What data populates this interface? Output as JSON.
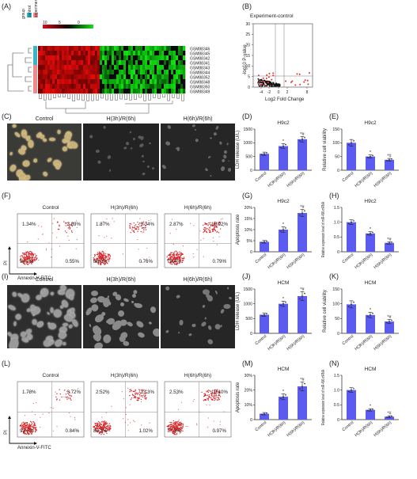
{
  "panels": {
    "A": "(A)",
    "B": "(B)",
    "C": "(C)",
    "D": "(D)",
    "E": "(E)",
    "F": "(F)",
    "G": "(G)",
    "H": "(H)",
    "I": "(I)",
    "J": "(J)",
    "K": "(K)",
    "L": "(L)",
    "M": "(M)",
    "N": "(N)"
  },
  "heatmap": {
    "group_label": "group",
    "legend_groups": [
      "control",
      "experiment"
    ],
    "scale_ticks": [
      "10",
      "5",
      "0"
    ],
    "samples": [
      "GSM88346",
      "GSM88345",
      "GSM88342",
      "GSM88341",
      "GSM88343",
      "GSM88344",
      "GSM88352",
      "GSM88348",
      "GSM88350",
      "GSM88349"
    ],
    "colors": {
      "control": "#35b6c9",
      "experiment": "#f08a8a",
      "high": "#e8101a",
      "low": "#18c018"
    }
  },
  "volcano": {
    "title": "Experiment-control",
    "xlabel": "Log2 Fold Change",
    "ylabel": "-log10 P-value",
    "xticks": [
      "-4",
      "-2",
      "0",
      "2",
      "8"
    ],
    "yticks": [
      "0",
      "5",
      "10",
      "15",
      "20",
      "25",
      "30"
    ]
  },
  "micro_labels": {
    "c1": "Control",
    "c2": "H(3h)/R(6h)",
    "c3": "H(6h)/R(6h)",
    "i1": "Control",
    "i2": "H(3h)/R(6h)",
    "i3": "H(6h)/R(6h)"
  },
  "flow": {
    "F": [
      {
        "title": "Control",
        "ul": "1.34%",
        "ur": "3.89%",
        "ll": "94.2%",
        "lr": "0.55%"
      },
      {
        "title": "H(3h)/R(6h)",
        "ul": "1.87%",
        "ur": "9.34%",
        "ll": "88.0%",
        "lr": "0.76%"
      },
      {
        "title": "H(6h)/R(6h)",
        "ul": "2.87%",
        "ur": "16.92%",
        "ll": "79.4%",
        "lr": "0.79%"
      }
    ],
    "L": [
      {
        "title": "Control",
        "ul": "1.78%",
        "ur": "3.72%",
        "ll": "93.7%",
        "lr": "0.84%"
      },
      {
        "title": "H(3h)/R(6h)",
        "ul": "2.52%",
        "ur": "13.3%",
        "ll": "83.2%",
        "lr": "1.02%"
      },
      {
        "title": "H(6h)/R(6h)",
        "ul": "2.53%",
        "ur": "19.10%",
        "ll": "77.3%",
        "lr": "0.97%"
      }
    ],
    "ylabel": "PI",
    "xlabel": "Annexin-V-FITC"
  },
  "bar_color": "#5b5bf0",
  "chart_data": [
    {
      "id": "D",
      "type": "bar",
      "title": "H9c2",
      "ylabel": "LDH release (U/L)",
      "categories": [
        "Control",
        "H(3h)/R(6h)",
        "H(6h)/R(6h)"
      ],
      "values": [
        600,
        880,
        1130
      ],
      "errors": [
        60,
        90,
        100
      ],
      "ylim": [
        0,
        1500
      ],
      "yticks": [
        0,
        500,
        1000,
        1500
      ],
      "marks": [
        "",
        "*",
        "*#"
      ]
    },
    {
      "id": "E",
      "type": "bar",
      "title": "H9c2",
      "ylabel": "Relative cell viability",
      "categories": [
        "Control",
        "H(3h)/R(6h)",
        "H(6h)/R(6h)"
      ],
      "values": [
        100,
        50,
        38
      ],
      "errors": [
        12,
        6,
        5
      ],
      "ylim": [
        0,
        150
      ],
      "yticks": [
        0,
        50,
        100,
        150
      ],
      "marks": [
        "",
        "*",
        "*#"
      ]
    },
    {
      "id": "G",
      "type": "bar",
      "title": "H9c2",
      "ylabel": "Apoptosis rate",
      "categories": [
        "Control",
        "H(3h)/R(6h)",
        "H(6h)/R(6h)"
      ],
      "values": [
        4.5,
        10,
        17.5
      ],
      "errors": [
        0.6,
        1.2,
        1.6
      ],
      "ylim": [
        0,
        20
      ],
      "yticks": [
        "0",
        "5%",
        "10%",
        "15%",
        "20%"
      ],
      "marks": [
        "",
        "*",
        "*#"
      ]
    },
    {
      "id": "H",
      "type": "bar",
      "title": "H9c2",
      "ylabel": "Relative expression level of miR-496 mRNA",
      "categories": [
        "Control",
        "H(3h)/R(6h)",
        "H(6h)/R(6h)"
      ],
      "values": [
        1.0,
        0.62,
        0.3
      ],
      "errors": [
        0.08,
        0.06,
        0.04
      ],
      "ylim": [
        0,
        1.5
      ],
      "yticks": [
        "0",
        "0.5",
        "1.0",
        "1.5"
      ],
      "marks": [
        "",
        "*",
        "*#"
      ]
    },
    {
      "id": "J",
      "type": "bar",
      "title": "HCM",
      "ylabel": "LDH release (U/L)",
      "categories": [
        "Control",
        "H(3h)/R(6h)",
        "H(6h)/R(6h)"
      ],
      "values": [
        630,
        1000,
        1260
      ],
      "errors": [
        60,
        90,
        150
      ],
      "ylim": [
        0,
        1500
      ],
      "yticks": [
        0,
        500,
        1000,
        1500
      ],
      "marks": [
        "",
        "*",
        "*#"
      ]
    },
    {
      "id": "K",
      "type": "bar",
      "title": "HCM",
      "ylabel": "Relative cell viability",
      "categories": [
        "Control",
        "H(3h)/R(6h)",
        "H(6h)/R(6h)"
      ],
      "values": [
        98,
        62,
        40
      ],
      "errors": [
        12,
        9,
        7
      ],
      "ylim": [
        0,
        150
      ],
      "yticks": [
        0,
        50,
        100,
        150
      ],
      "marks": [
        "",
        "*",
        "*#"
      ]
    },
    {
      "id": "M",
      "type": "bar",
      "title": "HCM",
      "ylabel": "Apoptosis rate",
      "categories": [
        "Control",
        "H(3h)/R(6h)",
        "H(6h)/R(6h)"
      ],
      "values": [
        4,
        15.5,
        22.5
      ],
      "errors": [
        0.8,
        2,
        3
      ],
      "ylim": [
        0,
        30
      ],
      "yticks": [
        "0",
        "10%",
        "20%",
        "30%"
      ],
      "marks": [
        "",
        "*",
        "*#"
      ]
    },
    {
      "id": "N",
      "type": "bar",
      "title": "HCM",
      "ylabel": "Relative expression level of miR-496 mRNA",
      "categories": [
        "Control",
        "H(3h)/R(6h)",
        "H(6h)/R(6h)"
      ],
      "values": [
        1.0,
        0.33,
        0.1
      ],
      "errors": [
        0.08,
        0.04,
        0.03
      ],
      "ylim": [
        0,
        1.5
      ],
      "yticks": [
        "0",
        "0.5",
        "1.0",
        "1.5"
      ],
      "marks": [
        "",
        "*",
        "*#"
      ]
    }
  ]
}
